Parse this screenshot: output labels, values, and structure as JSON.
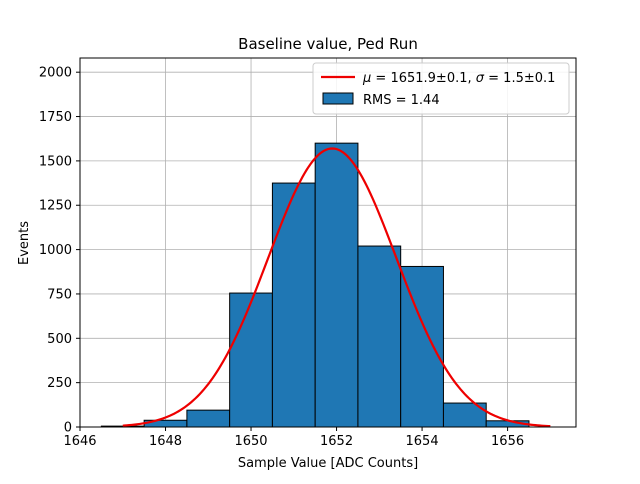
{
  "chart_data": {
    "type": "bar",
    "title": "Baseline value, Ped Run",
    "xlabel": "Sample Value [ADC Counts]",
    "ylabel": "Events",
    "xlim": [
      1646,
      1657.6
    ],
    "ylim": [
      0,
      2080
    ],
    "xticks": [
      1646,
      1648,
      1650,
      1652,
      1654,
      1656
    ],
    "yticks": [
      0,
      250,
      500,
      750,
      1000,
      1250,
      1500,
      1750,
      2000
    ],
    "grid": true,
    "legend_position": "top-right",
    "bin_width": 1,
    "histogram": {
      "label": "RMS = 1.44",
      "color": "#1f77b4",
      "edge_color": "#000000",
      "bin_centers": [
        1647,
        1648,
        1649,
        1650,
        1651,
        1652,
        1653,
        1654,
        1655,
        1656
      ],
      "counts": [
        5,
        38,
        95,
        755,
        1375,
        1600,
        1020,
        905,
        135,
        35
      ]
    },
    "fit": {
      "label_prefix": "μ",
      "label_mid": " = 1651.9±0.1, ",
      "label_sigma": "σ",
      "label_suffix": " = 1.5±0.1",
      "color": "#ee0000",
      "mu": 1651.9,
      "sigma": 1.5,
      "amplitude": 1570,
      "x_range": [
        1647,
        1657
      ]
    }
  }
}
